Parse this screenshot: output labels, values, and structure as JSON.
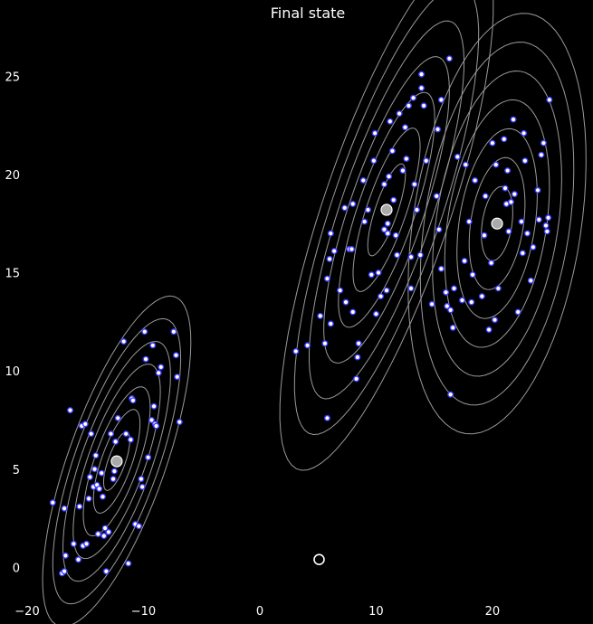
{
  "chart_data": {
    "type": "scatter",
    "title": "Final state",
    "xlabel": "",
    "ylabel": "",
    "xlim": [
      -20,
      26
    ],
    "ylim": [
      -1.5,
      27.5
    ],
    "x_ticks": [
      -20,
      -10,
      0,
      10,
      20
    ],
    "x_tick_labels": [
      "−20",
      "−10",
      "0",
      "10",
      "20"
    ],
    "y_ticks": [
      0,
      5,
      10,
      15,
      20,
      25
    ],
    "y_tick_labels": [
      "0",
      "5",
      "10",
      "15",
      "20",
      "25"
    ],
    "grid": false,
    "background": "#000000",
    "colors": {
      "point_fill": "#ffffff",
      "point_edge": "#3b3bff",
      "contour": "#9a9a9a",
      "centroid_fill": "#aaaaaa",
      "centroid_edge": "#ffffff"
    },
    "centroids": [
      {
        "x": -12.3,
        "y": 5.4
      },
      {
        "x": 10.9,
        "y": 18.2
      },
      {
        "x": 20.4,
        "y": 17.5
      }
    ],
    "outlier_marker": {
      "x": 5.1,
      "y": 0.4
    },
    "contours": [
      {
        "cx": -12.3,
        "cy": 5.4,
        "sx": 2.5,
        "sy": 3.3,
        "rho": 0.72,
        "levels": [
          0.45,
          0.8,
          1.15,
          1.5,
          1.85,
          2.2,
          2.55
        ]
      },
      {
        "cx": 10.9,
        "cy": 18.2,
        "sx": 3.6,
        "sy": 5.2,
        "rho": 0.78,
        "levels": [
          0.45,
          0.8,
          1.15,
          1.5,
          1.85,
          2.2,
          2.55
        ]
      },
      {
        "cx": 20.4,
        "cy": 17.5,
        "sx": 3.0,
        "sy": 4.2,
        "rho": 0.3,
        "levels": [
          0.45,
          0.8,
          1.15,
          1.5,
          1.85,
          2.2,
          2.55
        ]
      }
    ],
    "points": [
      {
        "x": -16.3,
        "y": 8.0
      },
      {
        "x": -17.8,
        "y": 3.3
      },
      {
        "x": -16.8,
        "y": 3.0
      },
      {
        "x": -17.0,
        "y": -0.3
      },
      {
        "x": -16.8,
        "y": -0.2
      },
      {
        "x": -16.7,
        "y": 0.6
      },
      {
        "x": -16.0,
        "y": 1.2
      },
      {
        "x": -15.6,
        "y": 0.4
      },
      {
        "x": -15.5,
        "y": 3.1
      },
      {
        "x": -15.3,
        "y": 7.2
      },
      {
        "x": -15.0,
        "y": 7.3
      },
      {
        "x": -15.2,
        "y": 1.1
      },
      {
        "x": -14.9,
        "y": 1.2
      },
      {
        "x": -14.7,
        "y": 3.5
      },
      {
        "x": -14.6,
        "y": 4.6
      },
      {
        "x": -14.5,
        "y": 6.8
      },
      {
        "x": -14.3,
        "y": 4.1
      },
      {
        "x": -14.2,
        "y": 5.0
      },
      {
        "x": -14.1,
        "y": 5.7
      },
      {
        "x": -14.0,
        "y": 4.2
      },
      {
        "x": -13.9,
        "y": 1.7
      },
      {
        "x": -13.8,
        "y": 4.0
      },
      {
        "x": -13.6,
        "y": 4.8
      },
      {
        "x": -13.5,
        "y": 3.6
      },
      {
        "x": -13.4,
        "y": 1.6
      },
      {
        "x": -13.3,
        "y": 2.0
      },
      {
        "x": -13.2,
        "y": -0.2
      },
      {
        "x": -13.0,
        "y": 1.8
      },
      {
        "x": -12.8,
        "y": 6.8
      },
      {
        "x": -12.6,
        "y": 4.5
      },
      {
        "x": -12.5,
        "y": 4.9
      },
      {
        "x": -12.4,
        "y": 6.4
      },
      {
        "x": -12.2,
        "y": 7.6
      },
      {
        "x": -11.7,
        "y": 11.5
      },
      {
        "x": -11.5,
        "y": 6.8
      },
      {
        "x": -11.3,
        "y": 0.2
      },
      {
        "x": -11.1,
        "y": 6.5
      },
      {
        "x": -11.0,
        "y": 8.6
      },
      {
        "x": -10.9,
        "y": 8.5
      },
      {
        "x": -10.7,
        "y": 2.2
      },
      {
        "x": -10.4,
        "y": 2.1
      },
      {
        "x": -10.2,
        "y": 4.5
      },
      {
        "x": -10.1,
        "y": 4.1
      },
      {
        "x": -9.9,
        "y": 12.0
      },
      {
        "x": -9.8,
        "y": 10.6
      },
      {
        "x": -9.6,
        "y": 5.6
      },
      {
        "x": -9.3,
        "y": 7.5
      },
      {
        "x": -9.2,
        "y": 11.3
      },
      {
        "x": -9.1,
        "y": 8.2
      },
      {
        "x": -9.0,
        "y": 7.3
      },
      {
        "x": -8.9,
        "y": 7.2
      },
      {
        "x": -8.7,
        "y": 9.9
      },
      {
        "x": -8.5,
        "y": 10.2
      },
      {
        "x": -7.4,
        "y": 12.0
      },
      {
        "x": -7.2,
        "y": 10.8
      },
      {
        "x": -7.1,
        "y": 9.7
      },
      {
        "x": -6.9,
        "y": 7.4
      },
      {
        "x": 3.1,
        "y": 11.0
      },
      {
        "x": 4.1,
        "y": 11.3
      },
      {
        "x": 5.2,
        "y": 12.8
      },
      {
        "x": 5.6,
        "y": 11.4
      },
      {
        "x": 5.8,
        "y": 7.6
      },
      {
        "x": 5.8,
        "y": 14.7
      },
      {
        "x": 6.0,
        "y": 15.7
      },
      {
        "x": 6.1,
        "y": 17.0
      },
      {
        "x": 6.1,
        "y": 12.4
      },
      {
        "x": 6.4,
        "y": 16.1
      },
      {
        "x": 6.9,
        "y": 14.1
      },
      {
        "x": 7.3,
        "y": 18.3
      },
      {
        "x": 7.4,
        "y": 13.5
      },
      {
        "x": 7.7,
        "y": 16.2
      },
      {
        "x": 7.9,
        "y": 16.2
      },
      {
        "x": 8.0,
        "y": 18.5
      },
      {
        "x": 8.0,
        "y": 13.0
      },
      {
        "x": 8.3,
        "y": 9.6
      },
      {
        "x": 8.4,
        "y": 10.7
      },
      {
        "x": 8.5,
        "y": 11.4
      },
      {
        "x": 8.9,
        "y": 19.7
      },
      {
        "x": 9.0,
        "y": 17.6
      },
      {
        "x": 9.3,
        "y": 18.2
      },
      {
        "x": 9.6,
        "y": 14.9
      },
      {
        "x": 9.8,
        "y": 20.7
      },
      {
        "x": 9.9,
        "y": 22.1
      },
      {
        "x": 10.0,
        "y": 12.9
      },
      {
        "x": 10.2,
        "y": 15.0
      },
      {
        "x": 10.4,
        "y": 13.8
      },
      {
        "x": 10.7,
        "y": 17.2
      },
      {
        "x": 10.7,
        "y": 19.5
      },
      {
        "x": 10.9,
        "y": 14.1
      },
      {
        "x": 11.0,
        "y": 17.5
      },
      {
        "x": 11.0,
        "y": 17.0
      },
      {
        "x": 11.1,
        "y": 19.9
      },
      {
        "x": 11.2,
        "y": 22.7
      },
      {
        "x": 11.4,
        "y": 21.2
      },
      {
        "x": 11.5,
        "y": 18.7
      },
      {
        "x": 11.7,
        "y": 16.9
      },
      {
        "x": 11.8,
        "y": 15.9
      },
      {
        "x": 12.0,
        "y": 23.1
      },
      {
        "x": 12.3,
        "y": 20.2
      },
      {
        "x": 12.5,
        "y": 22.4
      },
      {
        "x": 12.6,
        "y": 20.8
      },
      {
        "x": 12.8,
        "y": 23.5
      },
      {
        "x": 13.0,
        "y": 15.8
      },
      {
        "x": 13.0,
        "y": 14.2
      },
      {
        "x": 13.2,
        "y": 23.9
      },
      {
        "x": 13.3,
        "y": 19.5
      },
      {
        "x": 13.5,
        "y": 18.2
      },
      {
        "x": 13.8,
        "y": 15.9
      },
      {
        "x": 13.9,
        "y": 24.4
      },
      {
        "x": 13.9,
        "y": 25.1
      },
      {
        "x": 14.1,
        "y": 23.5
      },
      {
        "x": 14.3,
        "y": 20.7
      },
      {
        "x": 14.8,
        "y": 13.4
      },
      {
        "x": 15.2,
        "y": 18.9
      },
      {
        "x": 15.3,
        "y": 22.3
      },
      {
        "x": 15.4,
        "y": 17.2
      },
      {
        "x": 15.6,
        "y": 23.8
      },
      {
        "x": 15.6,
        "y": 15.2
      },
      {
        "x": 16.3,
        "y": 25.9
      },
      {
        "x": 16.4,
        "y": 8.8
      },
      {
        "x": 16.4,
        "y": 13.1
      },
      {
        "x": 16.6,
        "y": 12.2
      },
      {
        "x": 16.0,
        "y": 14.0
      },
      {
        "x": 16.1,
        "y": 13.3
      },
      {
        "x": 16.7,
        "y": 14.2
      },
      {
        "x": 17.0,
        "y": 20.9
      },
      {
        "x": 17.4,
        "y": 13.6
      },
      {
        "x": 17.6,
        "y": 15.6
      },
      {
        "x": 17.7,
        "y": 20.5
      },
      {
        "x": 18.0,
        "y": 17.6
      },
      {
        "x": 18.2,
        "y": 13.5
      },
      {
        "x": 18.3,
        "y": 14.9
      },
      {
        "x": 18.5,
        "y": 19.7
      },
      {
        "x": 19.1,
        "y": 13.8
      },
      {
        "x": 19.3,
        "y": 16.9
      },
      {
        "x": 19.4,
        "y": 18.9
      },
      {
        "x": 19.7,
        "y": 12.1
      },
      {
        "x": 19.9,
        "y": 15.5
      },
      {
        "x": 20.0,
        "y": 21.6
      },
      {
        "x": 20.2,
        "y": 12.6
      },
      {
        "x": 20.3,
        "y": 20.5
      },
      {
        "x": 20.5,
        "y": 14.2
      },
      {
        "x": 21.0,
        "y": 21.8
      },
      {
        "x": 21.1,
        "y": 19.3
      },
      {
        "x": 21.2,
        "y": 18.5
      },
      {
        "x": 21.3,
        "y": 20.2
      },
      {
        "x": 21.4,
        "y": 17.1
      },
      {
        "x": 21.6,
        "y": 18.6
      },
      {
        "x": 21.8,
        "y": 22.8
      },
      {
        "x": 21.9,
        "y": 19.0
      },
      {
        "x": 22.2,
        "y": 13.0
      },
      {
        "x": 22.5,
        "y": 17.6
      },
      {
        "x": 22.6,
        "y": 16.0
      },
      {
        "x": 22.7,
        "y": 22.1
      },
      {
        "x": 22.8,
        "y": 20.7
      },
      {
        "x": 23.0,
        "y": 17.0
      },
      {
        "x": 23.3,
        "y": 14.6
      },
      {
        "x": 23.5,
        "y": 16.3
      },
      {
        "x": 23.9,
        "y": 19.2
      },
      {
        "x": 24.0,
        "y": 17.7
      },
      {
        "x": 24.2,
        "y": 21.0
      },
      {
        "x": 24.4,
        "y": 21.6
      },
      {
        "x": 24.6,
        "y": 17.4
      },
      {
        "x": 24.7,
        "y": 17.1
      },
      {
        "x": 24.8,
        "y": 17.8
      },
      {
        "x": 24.9,
        "y": 23.8
      }
    ]
  }
}
